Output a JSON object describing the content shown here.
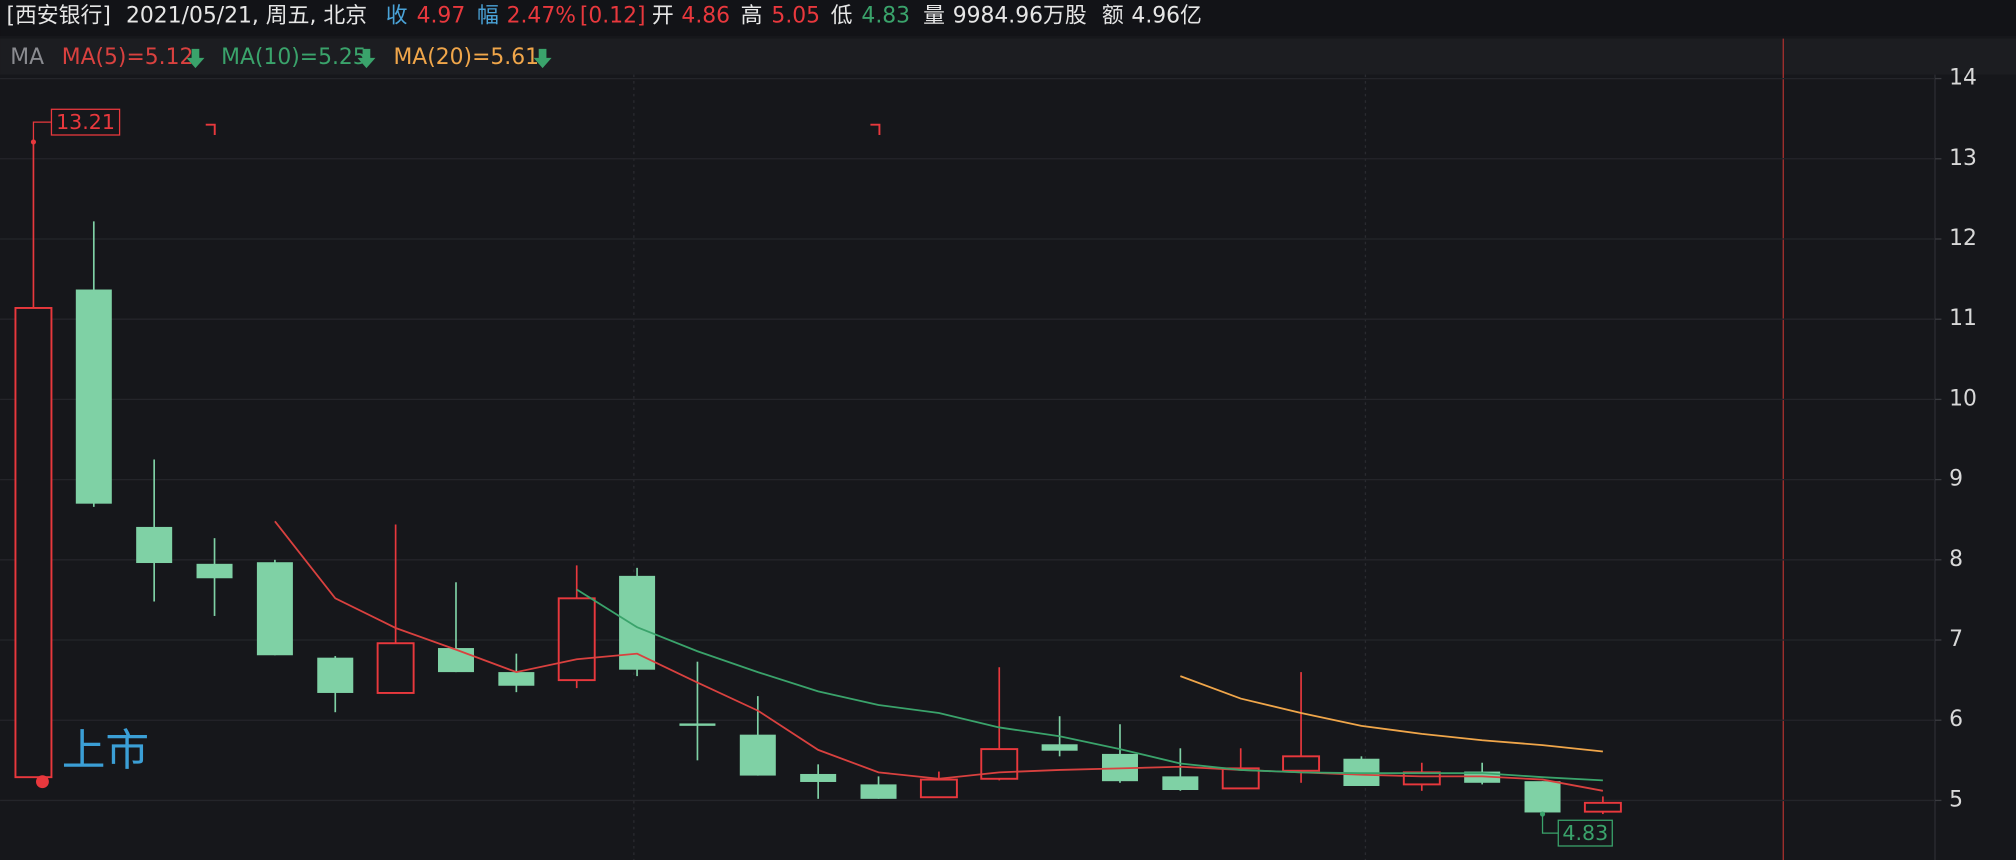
{
  "header": {
    "stock": "[西安银行]",
    "date": "2021/05/21, 周五, 北京",
    "close_label": "收",
    "close": "4.97",
    "change_label": "幅",
    "change_pct": "2.47%",
    "change": "[0.12]",
    "open_label": "开",
    "open": "4.86",
    "high_label": "高",
    "high": "5.05",
    "low_label": "低",
    "low": "4.83",
    "volume_label": "量",
    "volume": "9984.96万股",
    "amount_label": "额",
    "amount": "4.96亿"
  },
  "chart_data": {
    "type": "candlestick",
    "indicator": "MA",
    "open": [
      5.29,
      11.37,
      8.41,
      7.95,
      7.97,
      6.78,
      6.34,
      6.9,
      6.6,
      6.5,
      7.8,
      5.96,
      5.82,
      5.33,
      5.2,
      5.04,
      5.27,
      5.7,
      5.58,
      5.3,
      5.15,
      5.37,
      5.52,
      5.2,
      5.36,
      5.24,
      4.86
    ],
    "high": [
      13.21,
      12.22,
      9.25,
      8.27,
      8.0,
      6.8,
      8.44,
      7.72,
      6.83,
      7.93,
      7.9,
      6.73,
      6.3,
      5.45,
      5.3,
      5.36,
      6.66,
      6.05,
      5.95,
      5.65,
      5.65,
      6.6,
      5.55,
      5.47,
      5.47,
      5.24,
      5.05
    ],
    "low": [
      5.29,
      8.66,
      7.48,
      7.3,
      6.81,
      6.1,
      6.34,
      6.6,
      6.35,
      6.4,
      6.55,
      5.5,
      5.31,
      5.02,
      5.02,
      5.04,
      5.25,
      5.55,
      5.22,
      5.12,
      5.15,
      5.22,
      5.18,
      5.12,
      5.2,
      4.83,
      4.83
    ],
    "close": [
      11.14,
      8.7,
      7.96,
      7.77,
      6.81,
      6.34,
      6.96,
      6.6,
      6.43,
      7.52,
      6.63,
      5.93,
      5.31,
      5.23,
      5.02,
      5.26,
      5.64,
      5.62,
      5.24,
      5.13,
      5.4,
      5.55,
      5.18,
      5.35,
      5.22,
      4.85,
      4.97
    ],
    "up_color": "#e8383d",
    "down_color": "#7fd1a5",
    "series": [
      {
        "name": "MA(5)=5.12",
        "color": "#d9413f",
        "values": [
          null,
          null,
          null,
          null,
          8.48,
          7.52,
          7.15,
          6.88,
          6.6,
          6.76,
          6.83,
          6.47,
          6.12,
          5.63,
          5.35,
          5.27,
          5.35,
          5.38,
          5.4,
          5.42,
          5.38,
          5.35,
          5.32,
          5.3,
          5.3,
          5.26,
          5.12
        ]
      },
      {
        "name": "MA(10)=5.25",
        "color": "#3aa36b",
        "values": [
          null,
          null,
          null,
          null,
          null,
          null,
          null,
          null,
          null,
          7.63,
          7.16,
          6.86,
          6.6,
          6.36,
          6.19,
          6.09,
          5.91,
          5.8,
          5.64,
          5.46,
          5.38,
          5.35,
          5.34,
          5.34,
          5.34,
          5.29,
          5.25
        ]
      },
      {
        "name": "MA(20)=5.61",
        "color": "#f0a64a",
        "values": [
          null,
          null,
          null,
          null,
          null,
          null,
          null,
          null,
          null,
          null,
          null,
          null,
          null,
          null,
          null,
          null,
          null,
          null,
          null,
          6.55,
          6.27,
          6.09,
          5.93,
          5.83,
          5.75,
          5.69,
          5.61
        ]
      }
    ],
    "ylim": [
      4.4,
      14.05
    ],
    "yticks": [
      5,
      6,
      7,
      8,
      9,
      10,
      11,
      12,
      13,
      14
    ],
    "annotations": [
      {
        "text": "上市",
        "color": "#3b9fd6"
      }
    ]
  }
}
